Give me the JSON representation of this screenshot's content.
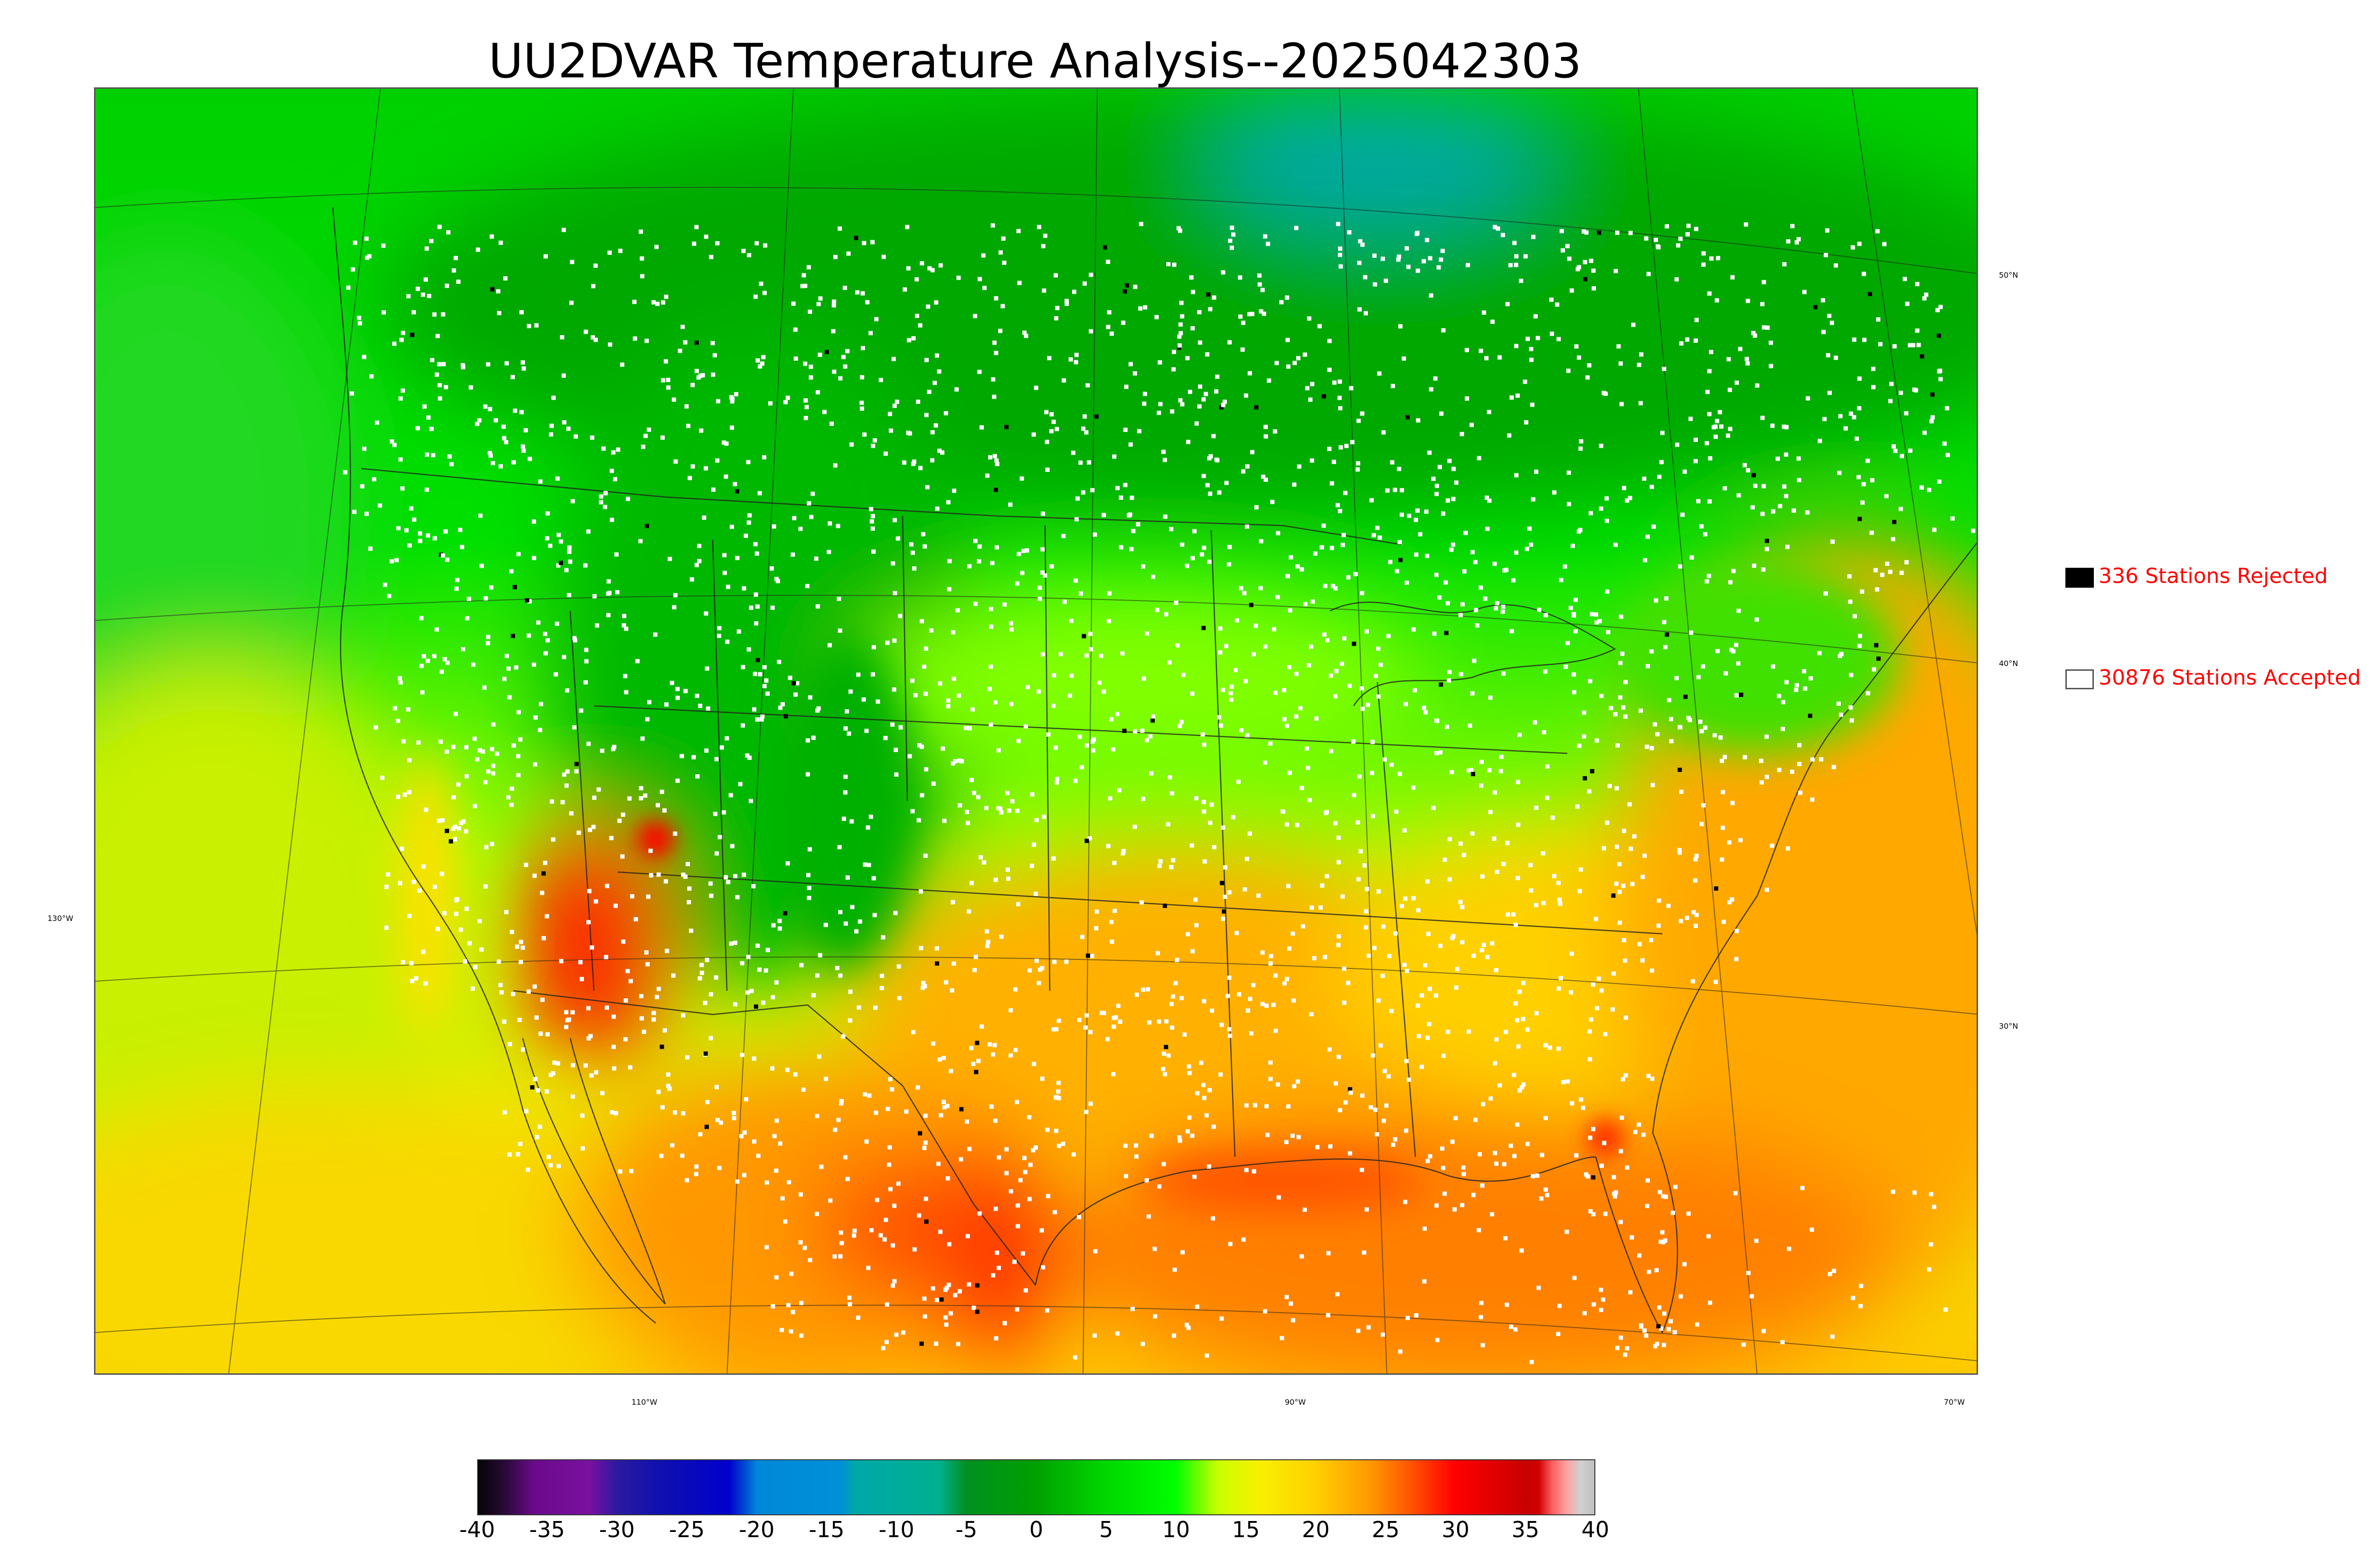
{
  "title": "UU2DVAR Temperature Analysis--2025042303",
  "map": {
    "lat_labels": [
      "50°N",
      "40°N",
      "30°N"
    ],
    "lon_labels": [
      "130°W",
      "110°W",
      "90°W",
      "70°W"
    ]
  },
  "legend": {
    "rejected": {
      "label": "336 Stations Rejected",
      "count": 336,
      "color": "#000000"
    },
    "accepted": {
      "label": "30876 Stations Accepted",
      "count": 30876,
      "color": "#ffffff"
    }
  },
  "colorbar": {
    "min": -40,
    "max": 40,
    "ticks": [
      "-40",
      "-35",
      "-30",
      "-25",
      "-20",
      "-15",
      "-10",
      "-5",
      "0",
      "5",
      "10",
      "15",
      "20",
      "25",
      "30",
      "35",
      "40"
    ],
    "stops": [
      {
        "v": -40,
        "c": "#050505"
      },
      {
        "v": -38,
        "c": "#2a0a3a"
      },
      {
        "v": -36,
        "c": "#6a0a8a"
      },
      {
        "v": -32,
        "c": "#7a10a0"
      },
      {
        "v": -30,
        "c": "#2a1aa0"
      },
      {
        "v": -27,
        "c": "#1010b0"
      },
      {
        "v": -22,
        "c": "#0000cc"
      },
      {
        "v": -20,
        "c": "#0088d8"
      },
      {
        "v": -14,
        "c": "#0090d8"
      },
      {
        "v": -13,
        "c": "#00a8a8"
      },
      {
        "v": -7,
        "c": "#00b090"
      },
      {
        "v": -5,
        "c": "#009020"
      },
      {
        "v": 0,
        "c": "#00a000"
      },
      {
        "v": 5,
        "c": "#00d800"
      },
      {
        "v": 10,
        "c": "#00ff00"
      },
      {
        "v": 13,
        "c": "#c8ff00"
      },
      {
        "v": 16,
        "c": "#f8f000"
      },
      {
        "v": 20,
        "c": "#ffd000"
      },
      {
        "v": 24,
        "c": "#ff9800"
      },
      {
        "v": 27,
        "c": "#ff5000"
      },
      {
        "v": 30,
        "c": "#ff0000"
      },
      {
        "v": 33,
        "c": "#e00000"
      },
      {
        "v": 35,
        "c": "#c80000"
      },
      {
        "v": 36,
        "c": "#d00000"
      },
      {
        "v": 37,
        "c": "#ff6060"
      },
      {
        "v": 38,
        "c": "#ffa0a0"
      },
      {
        "v": 39,
        "c": "#d0d0d0"
      },
      {
        "v": 40,
        "c": "#c0c0c0"
      }
    ]
  },
  "colors": {
    "ocean_warm": "#ff9a00",
    "land_cold": "#00b000",
    "land_hot": "#ff2000",
    "station_accepted": "#ffffff",
    "station_rejected": "#000000",
    "legend_text": "#ff0000"
  }
}
